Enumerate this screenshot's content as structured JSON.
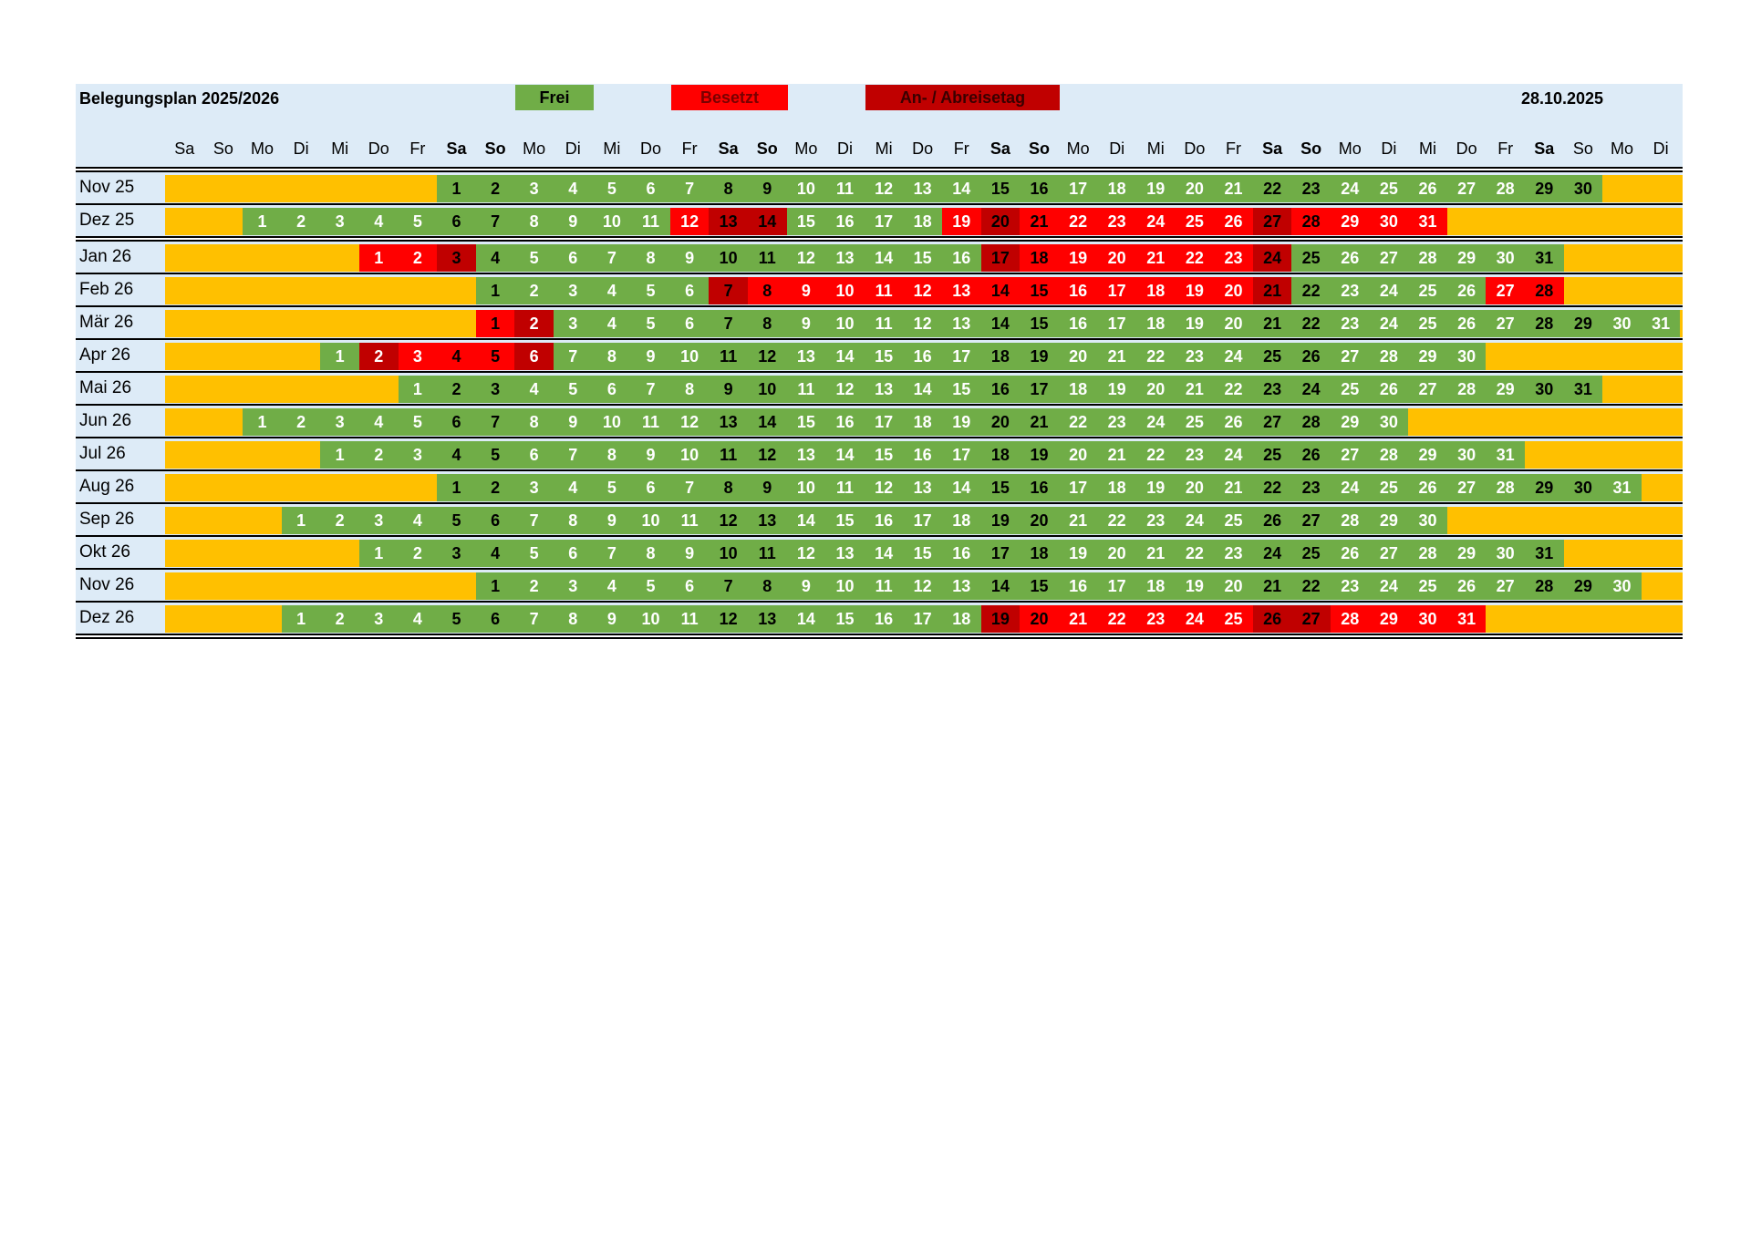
{
  "header": {
    "title": "Belegungsplan 2025/2026",
    "legend_free": "Frei",
    "legend_busy": "Besetzt",
    "legend_anab": "An- / Abreisetag",
    "date": "28.10.2025"
  },
  "weekday_labels": [
    "Sa",
    "So",
    "Mo",
    "Di",
    "Mi",
    "Do",
    "Fr",
    "Sa",
    "So",
    "Mo",
    "Di",
    "Mi",
    "Do",
    "Fr",
    "Sa",
    "So",
    "Mo",
    "Di",
    "Mi",
    "Do",
    "Fr",
    "Sa",
    "So",
    "Mo",
    "Di",
    "Mi",
    "Do",
    "Fr",
    "Sa",
    "So",
    "Mo",
    "Di",
    "Mi",
    "Do",
    "Fr",
    "Sa",
    "So",
    "Mo",
    "Di"
  ],
  "colors": {
    "free": "#70ad47",
    "busy": "#ff0000",
    "arrival_departure": "#c00000",
    "empty": "#ffc000",
    "header_bg": "#ddebf7"
  },
  "months": [
    {
      "label": "Nov 25",
      "start": 7,
      "days": 30,
      "busy": [],
      "anab": []
    },
    {
      "label": "Dez 25",
      "start": 2,
      "days": 31,
      "busy": [
        12,
        19,
        21,
        22,
        23,
        24,
        25,
        26,
        28,
        29,
        30,
        31
      ],
      "anab": [
        13,
        14,
        20,
        27
      ]
    },
    {
      "label": "Jan 26",
      "start": 5,
      "days": 31,
      "busy": [
        1,
        2,
        18,
        19,
        20,
        21,
        22,
        23
      ],
      "anab": [
        3,
        17,
        24
      ]
    },
    {
      "label": "Feb 26",
      "start": 8,
      "days": 28,
      "busy": [
        8,
        9,
        10,
        11,
        12,
        13,
        14,
        15,
        16,
        17,
        18,
        19,
        20,
        27,
        28
      ],
      "anab": [
        7,
        21
      ]
    },
    {
      "label": "Mär 26",
      "start": 8,
      "days": 31,
      "busy": [
        1
      ],
      "anab": [
        2
      ]
    },
    {
      "label": "Apr 26",
      "start": 4,
      "days": 30,
      "busy": [
        3,
        4,
        5
      ],
      "anab": [
        2,
        6
      ]
    },
    {
      "label": "Mai 26",
      "start": 6,
      "days": 31,
      "busy": [],
      "anab": []
    },
    {
      "label": "Jun 26",
      "start": 2,
      "days": 30,
      "busy": [],
      "anab": []
    },
    {
      "label": "Jul 26",
      "start": 4,
      "days": 31,
      "busy": [],
      "anab": []
    },
    {
      "label": "Aug 26",
      "start": 7,
      "days": 31,
      "busy": [],
      "anab": []
    },
    {
      "label": "Sep 26",
      "start": 3,
      "days": 30,
      "busy": [],
      "anab": []
    },
    {
      "label": "Okt 26",
      "start": 5,
      "days": 31,
      "busy": [],
      "anab": []
    },
    {
      "label": "Nov 26",
      "start": 8,
      "days": 30,
      "busy": [],
      "anab": []
    },
    {
      "label": "Dez 26",
      "start": 3,
      "days": 31,
      "busy": [
        20,
        21,
        22,
        23,
        24,
        25,
        28,
        29,
        30,
        31
      ],
      "anab": [
        19,
        26,
        27
      ]
    }
  ]
}
